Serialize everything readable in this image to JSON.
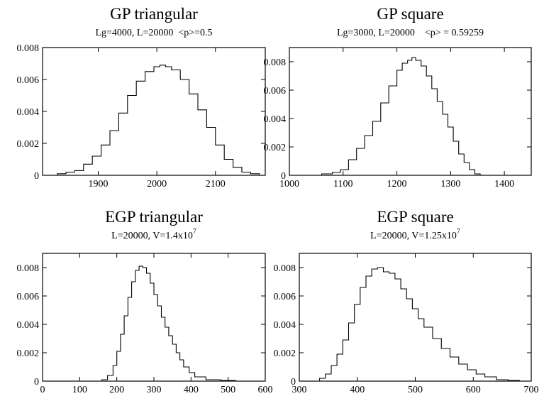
{
  "chart_data": [
    {
      "type": "line",
      "title": "GP triangular",
      "subtitle": "Lg=4000, L=20000  <p>=0.5",
      "xlim": [
        1805,
        2185
      ],
      "ylim": [
        0,
        0.008
      ],
      "xticks": [
        "1900",
        "2000",
        "2100"
      ],
      "yticks": [
        "0",
        "0.002",
        "0.004",
        "0.006",
        "0.008"
      ],
      "x": [
        1810,
        1830,
        1845,
        1860,
        1875,
        1890,
        1905,
        1920,
        1935,
        1950,
        1965,
        1980,
        1995,
        2005,
        2015,
        2025,
        2040,
        2055,
        2070,
        2085,
        2100,
        2115,
        2130,
        2145,
        2160,
        2175,
        2182
      ],
      "y": [
        0.0,
        0.0001,
        0.0002,
        0.0003,
        0.0007,
        0.0012,
        0.0019,
        0.0028,
        0.0039,
        0.005,
        0.0059,
        0.0065,
        0.0068,
        0.0069,
        0.0068,
        0.0066,
        0.006,
        0.0051,
        0.0041,
        0.003,
        0.0019,
        0.001,
        0.0005,
        0.0002,
        0.0001,
        0.0,
        0.0
      ]
    },
    {
      "type": "line",
      "title": "GP square",
      "subtitle": "Lg=3000, L=20000    <p> = 0.59259",
      "xlim": [
        1000,
        1450
      ],
      "ylim": [
        0,
        0.009
      ],
      "xticks": [
        "1000",
        "1100",
        "1200",
        "1300",
        "1400"
      ],
      "yticks": [
        "0",
        "0.002",
        "0.004",
        "0.006",
        "0.008"
      ],
      "x": [
        1040,
        1060,
        1080,
        1095,
        1110,
        1125,
        1140,
        1155,
        1170,
        1185,
        1200,
        1210,
        1220,
        1228,
        1235,
        1245,
        1255,
        1265,
        1275,
        1285,
        1295,
        1305,
        1315,
        1325,
        1335,
        1345,
        1355
      ],
      "y": [
        0.0,
        0.0001,
        0.0002,
        0.0004,
        0.0011,
        0.0019,
        0.0028,
        0.0038,
        0.0051,
        0.0063,
        0.0074,
        0.0079,
        0.0081,
        0.0083,
        0.0081,
        0.0077,
        0.007,
        0.0061,
        0.0052,
        0.0043,
        0.0034,
        0.0024,
        0.0015,
        0.0009,
        0.0004,
        0.0001,
        0.0
      ]
    },
    {
      "type": "line",
      "title": "EGP triangular",
      "subtitle": "L=20000, V=1.4x10",
      "subtitle_exp": "7",
      "xlim": [
        0,
        600
      ],
      "ylim": [
        0,
        0.009
      ],
      "xticks": [
        "0",
        "100",
        "200",
        "300",
        "400",
        "500",
        "600"
      ],
      "yticks": [
        "0",
        "0.002",
        "0.004",
        "0.006",
        "0.008"
      ],
      "x": [
        130,
        160,
        175,
        190,
        200,
        210,
        220,
        230,
        240,
        250,
        260,
        270,
        280,
        290,
        300,
        310,
        320,
        330,
        340,
        350,
        360,
        370,
        380,
        395,
        410,
        440,
        480,
        520,
        560
      ],
      "y": [
        0.0,
        0.0001,
        0.0004,
        0.0011,
        0.0021,
        0.0033,
        0.0046,
        0.0059,
        0.007,
        0.0078,
        0.0081,
        0.008,
        0.0076,
        0.0069,
        0.0061,
        0.0053,
        0.0045,
        0.0038,
        0.0032,
        0.0026,
        0.002,
        0.0015,
        0.001,
        0.0006,
        0.0003,
        0.0001,
        5e-05,
        0.0,
        0.0
      ]
    },
    {
      "type": "line",
      "title": "EGP square",
      "subtitle": "L=20000, V=1.25x10",
      "subtitle_exp": "7",
      "xlim": [
        300,
        700
      ],
      "ylim": [
        0,
        0.009
      ],
      "xticks": [
        "300",
        "400",
        "500",
        "600",
        "700"
      ],
      "yticks": [
        "0",
        "0.002",
        "0.004",
        "0.006",
        "0.008"
      ],
      "x": [
        320,
        335,
        345,
        355,
        365,
        375,
        385,
        395,
        405,
        415,
        425,
        435,
        445,
        455,
        465,
        475,
        485,
        495,
        505,
        515,
        530,
        545,
        560,
        575,
        590,
        605,
        620,
        640,
        660,
        680,
        695
      ],
      "y": [
        0.0,
        0.0002,
        0.0005,
        0.0011,
        0.0019,
        0.0029,
        0.0041,
        0.0054,
        0.0066,
        0.0074,
        0.0079,
        0.008,
        0.0077,
        0.0076,
        0.0072,
        0.0065,
        0.0058,
        0.0051,
        0.0044,
        0.0038,
        0.003,
        0.0023,
        0.0017,
        0.0012,
        0.0008,
        0.0005,
        0.0003,
        0.0001,
        5e-05,
        0.0,
        0.0
      ]
    }
  ]
}
